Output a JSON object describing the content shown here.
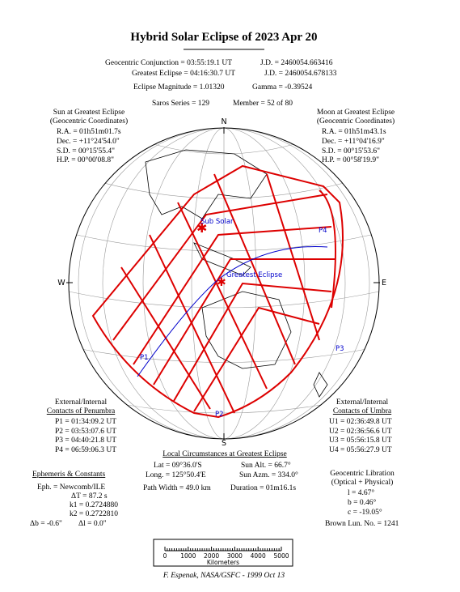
{
  "title": "Hybrid Solar Eclipse of 2023 Apr 20",
  "header": {
    "conjunction": "Geocentric Conjunction =  03:55:19.1 UT",
    "conjunction_jd": "J.D. =  2460054.663416",
    "greatest": "Greatest Eclipse =  04:16:30.7 UT",
    "greatest_jd": "J.D. =  2460054.678133",
    "magnitude": "Eclipse Magnitude =  1.01320",
    "gamma": "Gamma = -0.39524",
    "saros": "Saros Series = 129",
    "member": "Member = 52 of 80"
  },
  "sun": {
    "title": [
      "Sun at Greatest Eclipse",
      "(Geocentric Coordinates)"
    ],
    "rows": [
      "R.A. = 01h51m01.7s",
      "Dec. = +11°24'54.0\"",
      "S.D. =  00°15'55.4\"",
      "H.P. =  00°00'08.8\""
    ]
  },
  "moon": {
    "title": [
      "Moon at Greatest Eclipse",
      "(Geocentric Coordinates)"
    ],
    "rows": [
      "R.A. = 01h51m43.1s",
      "Dec. = +11°04'16.9\"",
      "S.D. =  00°15'53.6\"",
      "H.P. =  00°58'19.9\""
    ]
  },
  "compass": {
    "n": "N",
    "s": "S",
    "w": "W",
    "e": "E"
  },
  "map_labels": {
    "sub_solar": "Sub Solar",
    "greatest_eclipse": "Greatest Eclipse",
    "p1": "P1",
    "p2": "P2",
    "p3": "P3",
    "p4": "P4"
  },
  "penumbra": {
    "title": [
      "External/Internal",
      "Contacts of Penumbra"
    ],
    "rows": [
      "P1 = 01:34:09.2 UT",
      "P2 = 03:53:07.6 UT",
      "P3 = 04:40:21.8 UT",
      "P4 = 06:59:06.3 UT"
    ]
  },
  "umbra": {
    "title": [
      "External/Internal",
      "Contacts of Umbra"
    ],
    "rows": [
      "U1 = 02:36:49.8 UT",
      "U2 = 02:36:56.6 UT",
      "U3 = 05:56:15.8 UT",
      "U4 = 05:56:27.9 UT"
    ]
  },
  "local": {
    "title": "Local Circumstances at Greatest Eclipse",
    "rows": [
      [
        "Lat =  09°36.0'S",
        "Sun Alt. =   66.7°"
      ],
      [
        "Long. = 125°50.4'E",
        "Sun Azm. = 334.0°"
      ],
      [
        "Path Width =  49.0 km",
        "Duration =  01m16.1s"
      ]
    ]
  },
  "ephemeris": {
    "title": "Ephemeris & Constants",
    "rows": [
      "Eph. = Newcomb/ILE",
      "ΔT =    87.2  s",
      "k1 = 0.2724880",
      "k2 = 0.2722810"
    ],
    "db": "Δb =  -0.6\"",
    "dl": "Δl =   0.0\""
  },
  "libration": {
    "title": [
      "Geocentric Libration",
      "(Optical + Physical)"
    ],
    "rows": [
      "l =   4.67°",
      "b =   0.46°",
      "c = -19.05°"
    ],
    "brown": "Brown Lun. No. = 1241"
  },
  "scale": {
    "ticks": [
      0,
      1000,
      2000,
      3000,
      4000,
      5000
    ],
    "unit": "Kilometers"
  },
  "credit": "F. Espenak, NASA/GSFC - 1999 Oct 13"
}
